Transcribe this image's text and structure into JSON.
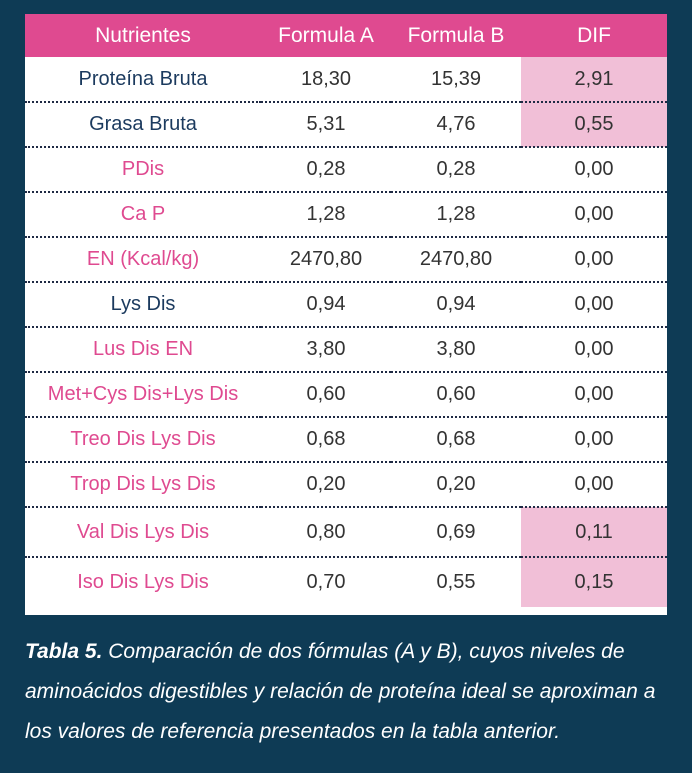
{
  "table": {
    "headers": [
      "Nutrientes",
      "Formula A",
      "Formula B",
      "DIF"
    ],
    "rows": [
      {
        "label": "Proteína Bruta",
        "a": "18,30",
        "b": "15,39",
        "dif": "2,91"
      },
      {
        "label": "Grasa Bruta",
        "a": "5,31",
        "b": "4,76",
        "dif": "0,55"
      },
      {
        "label": "PDis",
        "a": "0,28",
        "b": "0,28",
        "dif": "0,00"
      },
      {
        "label": "Ca P",
        "a": "1,28",
        "b": "1,28",
        "dif": "0,00"
      },
      {
        "label": "EN (Kcal/kg)",
        "a": "2470,80",
        "b": "2470,80",
        "dif": "0,00"
      },
      {
        "label": "Lys Dis",
        "a": "0,94",
        "b": "0,94",
        "dif": "0,00"
      },
      {
        "label": "Lus Dis EN",
        "a": "3,80",
        "b": "3,80",
        "dif": "0,00"
      },
      {
        "label": "Met+Cys Dis+Lys Dis",
        "a": "0,60",
        "b": "0,60",
        "dif": "0,00"
      },
      {
        "label": "Treo Dis Lys Dis",
        "a": "0,68",
        "b": "0,68",
        "dif": "0,00"
      },
      {
        "label": "Trop Dis Lys Dis",
        "a": "0,20",
        "b": "0,20",
        "dif": "0,00"
      },
      {
        "label": "Val Dis Lys Dis",
        "a": "0,80",
        "b": "0,69",
        "dif": "0,11"
      },
      {
        "label": "Iso Dis Lys Dis",
        "a": "0,70",
        "b": "0,55",
        "dif": "0,15"
      }
    ]
  },
  "caption": {
    "bold": "Tabla 5.",
    "text": " Comparación de dos fórmulas (A y B), cuyos niveles de aminoácidos digestibles y relación de proteína ideal se aproximan a los valores de referencia presentados en la tabla anterior."
  },
  "colors": {
    "background": "#0e3b55",
    "header": "#df4a90",
    "highlight": "#f1bfd7",
    "label_dark": "#1b3a5e",
    "label_pink": "#df4a90"
  }
}
